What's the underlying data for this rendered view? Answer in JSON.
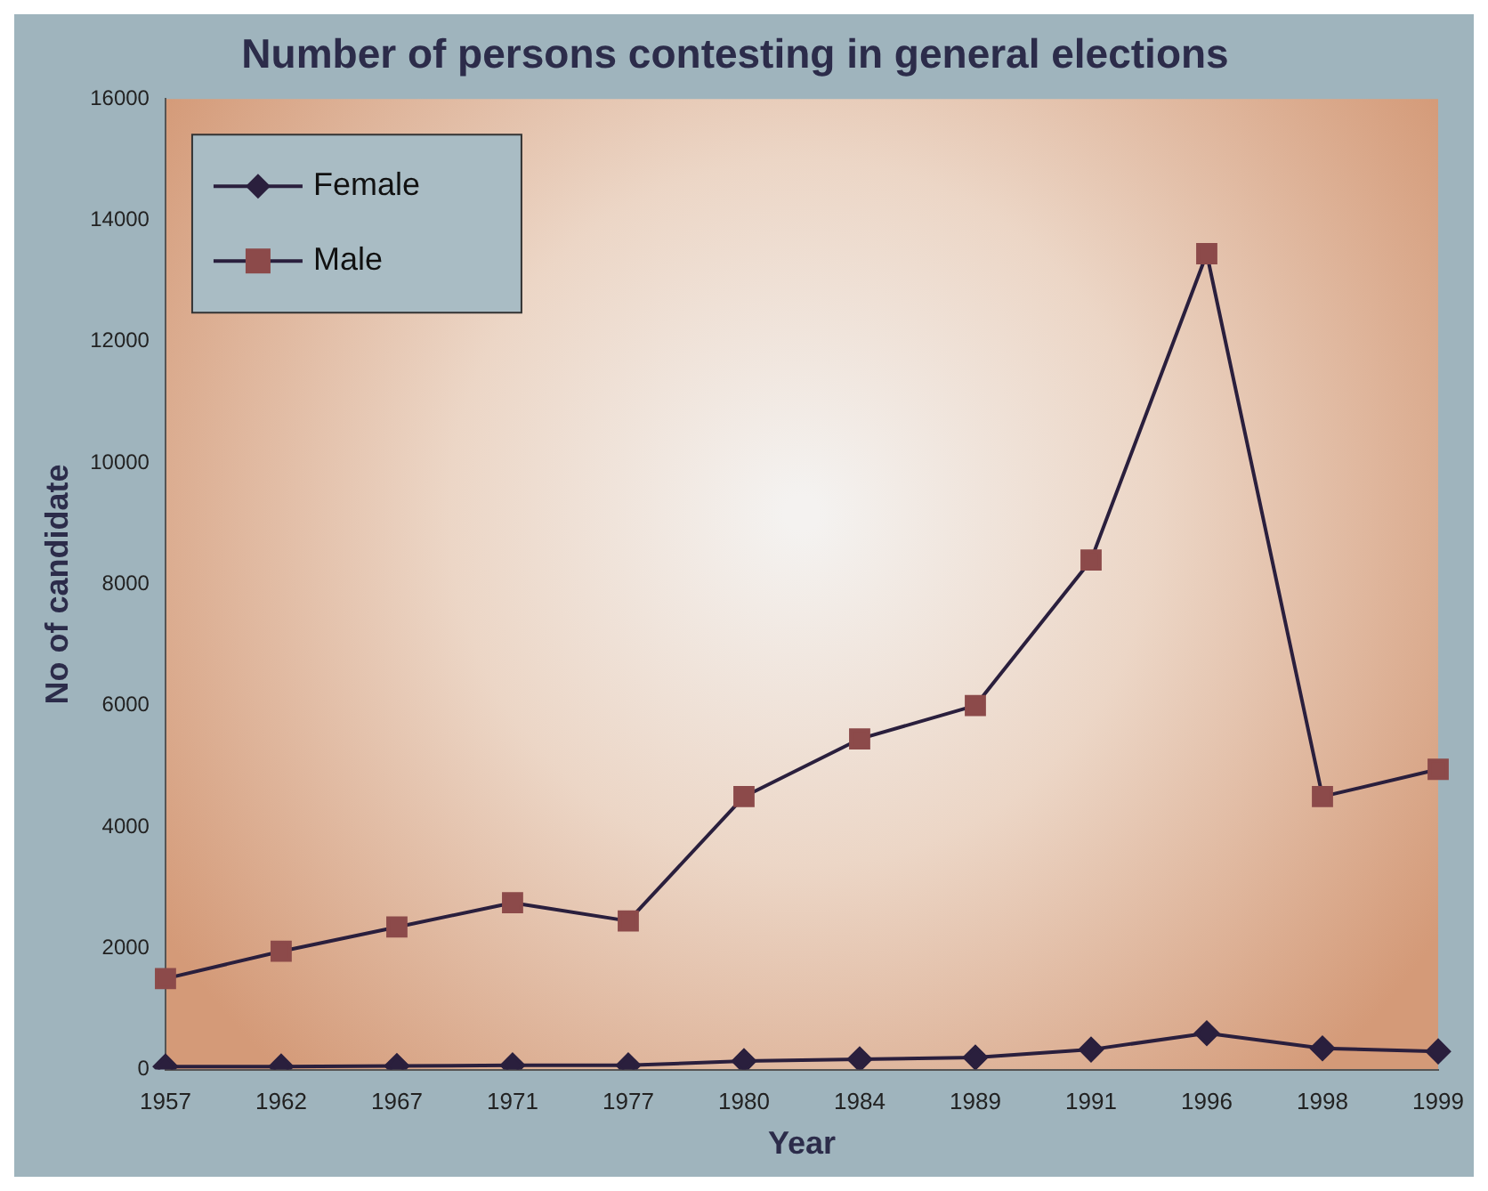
{
  "chart_data": {
    "type": "line",
    "title": "Number of persons contesting in general elections",
    "xlabel": "Year",
    "ylabel": "No of candidate",
    "categories": [
      "1957",
      "1962",
      "1967",
      "1971",
      "1977",
      "1980",
      "1984",
      "1989",
      "1991",
      "1996",
      "1998",
      "1999"
    ],
    "series": [
      {
        "name": "Female",
        "color": "#2a1f3d",
        "marker": "diamond",
        "values": [
          50,
          50,
          60,
          70,
          70,
          140,
          170,
          200,
          330,
          600,
          350,
          300
        ]
      },
      {
        "name": "Male",
        "color": "#8c4a4a",
        "marker": "square",
        "values": [
          1500,
          1950,
          2350,
          2750,
          2450,
          4500,
          5450,
          6000,
          8400,
          13450,
          4500,
          4950
        ]
      }
    ],
    "ylim": [
      0,
      16000
    ],
    "yticks": [
      0,
      2000,
      4000,
      6000,
      8000,
      10000,
      12000,
      14000,
      16000
    ],
    "grid": false,
    "legend": "top left"
  }
}
